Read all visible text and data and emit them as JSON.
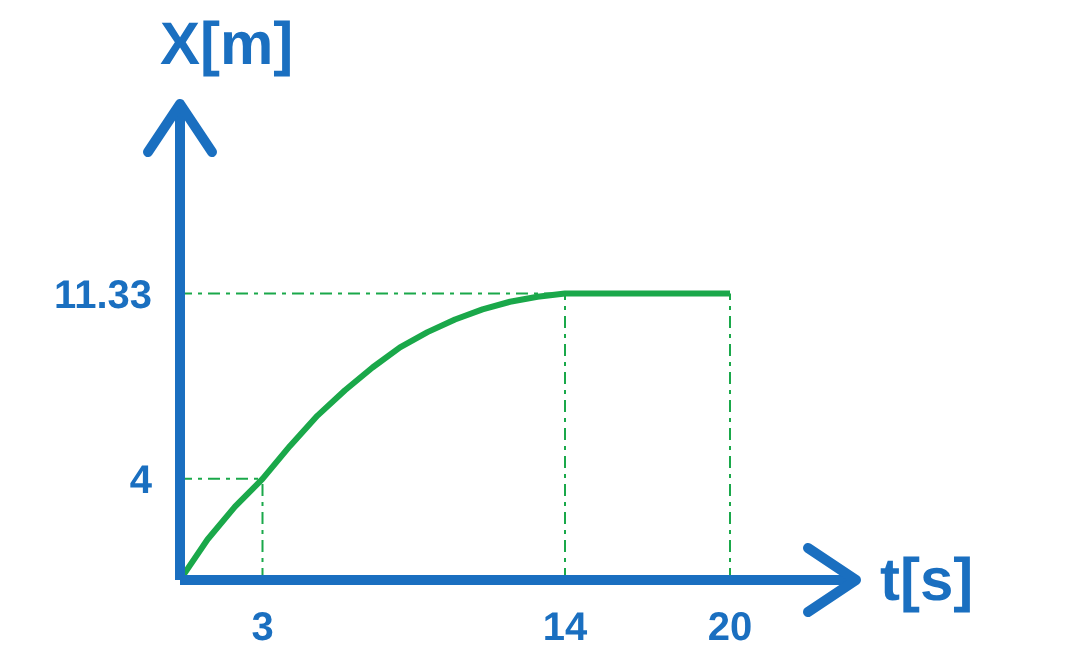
{
  "chart_data": {
    "type": "line",
    "xlabel": "t[s]",
    "ylabel": "X[m]",
    "x": [
      0,
      1,
      2,
      3,
      4,
      5,
      6,
      7,
      8,
      9,
      10,
      11,
      12,
      13,
      14,
      16,
      18,
      20
    ],
    "series": [
      {
        "color": "#1aa84a",
        "values": [
          0,
          1.6,
          2.9,
          4,
          5.3,
          6.5,
          7.5,
          8.4,
          9.2,
          9.8,
          10.3,
          10.7,
          11,
          11.2,
          11.33,
          11.33,
          11.33,
          11.33
        ]
      }
    ],
    "xlim": [
      0,
      24
    ],
    "ylim": [
      0,
      17
    ],
    "xticks": [
      3,
      14,
      20
    ],
    "yticks": [
      4,
      11.33
    ],
    "ref_lines": [
      {
        "axis": "x",
        "value": 3,
        "color": "#1aa84a",
        "line_style": "dashdot"
      },
      {
        "axis": "x",
        "value": 14,
        "color": "#1aa84a",
        "line_style": "dashdot"
      },
      {
        "axis": "x",
        "value": 20,
        "color": "#1aa84a",
        "line_style": "dashdot"
      },
      {
        "axis": "y",
        "value": 4,
        "color": "#1aa84a",
        "line_style": "dashdot"
      },
      {
        "axis": "y",
        "value": 11.33,
        "color": "#1aa84a",
        "line_style": "dashdot"
      }
    ],
    "grid": false,
    "legend": false,
    "marker": "none",
    "line_style": "solid"
  }
}
